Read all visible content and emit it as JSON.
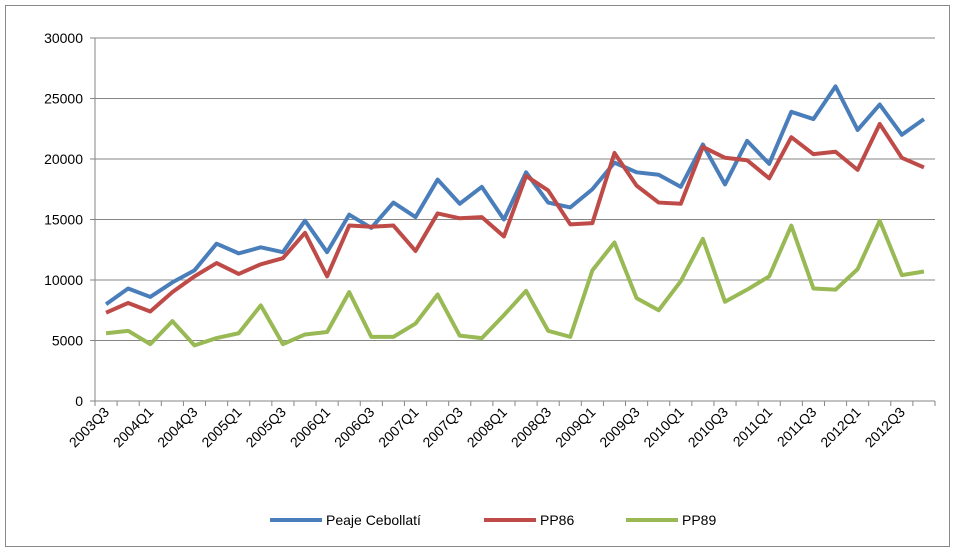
{
  "chart_data": {
    "type": "line",
    "categories": [
      "2003Q3",
      null,
      "2004Q1",
      null,
      "2004Q3",
      null,
      "2005Q1",
      null,
      "2005Q3",
      null,
      "2006Q1",
      null,
      "2006Q3",
      null,
      "2007Q1",
      null,
      "2007Q3",
      null,
      "2008Q1",
      null,
      "2008Q3",
      null,
      "2009Q1",
      null,
      "2009Q3",
      null,
      "2010Q1",
      null,
      "2010Q3",
      null,
      "2011Q1",
      null,
      "2011Q3",
      null,
      "2012Q1",
      null,
      "2012Q3",
      null
    ],
    "series": [
      {
        "name": "Peaje Cebollatí",
        "color": "#4a7ebb",
        "values": [
          8000,
          9300,
          8600,
          9800,
          10800,
          13000,
          12200,
          12700,
          12300,
          14900,
          12300,
          15400,
          14300,
          16400,
          15200,
          18300,
          16300,
          17700,
          15000,
          18900,
          16400,
          16000,
          17500,
          19700,
          18900,
          18700,
          17700,
          21200,
          17900,
          21500,
          19600,
          23900,
          23300,
          26000,
          22400,
          24500,
          22000,
          23300
        ]
      },
      {
        "name": "PP86",
        "color": "#be4b48",
        "values": [
          7300,
          8100,
          7400,
          9000,
          10300,
          11400,
          10500,
          11300,
          11800,
          13900,
          10300,
          14500,
          14400,
          14500,
          12400,
          15500,
          15100,
          15200,
          13600,
          18600,
          17400,
          14600,
          14700,
          20500,
          17800,
          16400,
          16300,
          21000,
          20100,
          19900,
          18400,
          21800,
          20400,
          20600,
          19100,
          22900,
          20100,
          19300
        ]
      },
      {
        "name": "PP89",
        "color": "#98b954",
        "values": [
          5600,
          5800,
          4700,
          6600,
          4600,
          5200,
          5600,
          7900,
          4700,
          5500,
          5700,
          9000,
          5300,
          5300,
          6400,
          8800,
          5400,
          5200,
          7100,
          9100,
          5800,
          5300,
          10800,
          13100,
          8500,
          7500,
          9900,
          13400,
          8200,
          9200,
          10300,
          14500,
          9300,
          9200,
          10900,
          14900,
          10400,
          10700
        ]
      }
    ],
    "ylim": [
      0,
      30000
    ],
    "yticks": [
      0,
      5000,
      10000,
      15000,
      20000,
      25000,
      30000
    ],
    "grid": true,
    "legend": "bottom"
  }
}
